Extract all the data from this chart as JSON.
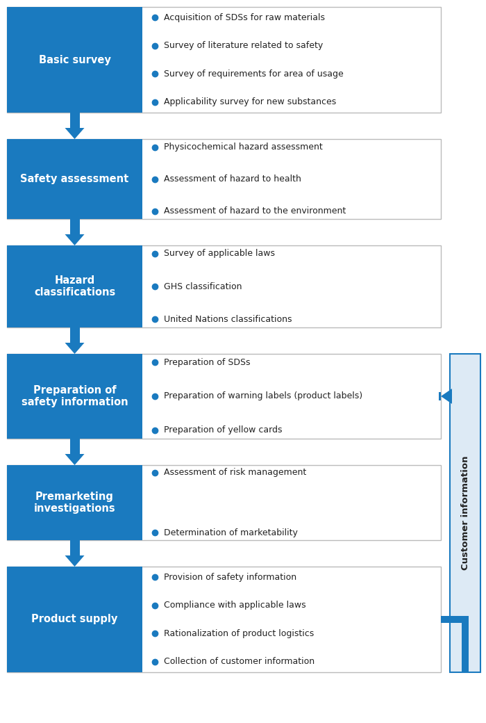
{
  "blue": "#1a7abf",
  "light_blue_bg": "#ddeaf5",
  "white": "#ffffff",
  "border_color": "#bbbbbb",
  "text_dark": "#222222",
  "arrow_color": "#1a7abf",
  "blocks": [
    {
      "title": "Basic survey",
      "bullets": [
        "Acquisition of SDSs for raw materials",
        "Survey of literature related to safety",
        "Survey of requirements for area of usage",
        "Applicability survey for new substances"
      ]
    },
    {
      "title": "Safety assessment",
      "bullets": [
        "Physicochemical hazard assessment",
        "Assessment of hazard to health",
        "Assessment of hazard to the environment"
      ]
    },
    {
      "title": "Hazard\nclassifications",
      "bullets": [
        "Survey of applicable laws",
        "GHS classification",
        "United Nations classifications"
      ]
    },
    {
      "title": "Preparation of\nsafety information",
      "bullets": [
        "Preparation of SDSs",
        "Preparation of warning labels (product labels)",
        "Preparation of yellow cards"
      ]
    },
    {
      "title": "Premarketing\ninvestigations",
      "bullets": [
        "Assessment of risk management",
        "Determination of marketability"
      ]
    },
    {
      "title": "Product supply",
      "bullets": [
        "Provision of safety information",
        "Compliance with applicable laws",
        "Rationalization of product logistics",
        "Collection of customer information"
      ]
    }
  ],
  "customer_info_label": "Customer information",
  "fig_width": 7.0,
  "fig_height": 10.4
}
